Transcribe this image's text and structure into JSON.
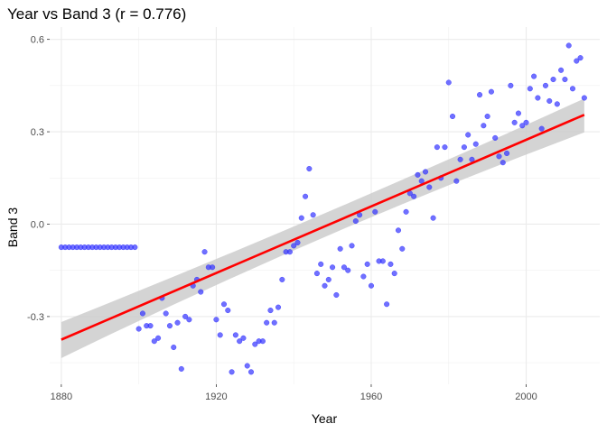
{
  "chart_data": {
    "type": "scatter",
    "title": "Year vs Band 3 (r = 0.776)",
    "xlabel": "Year",
    "ylabel": "Band 3",
    "xlim": [
      1877,
      2019
    ],
    "ylim": [
      -0.52,
      0.64
    ],
    "x_ticks": [
      1880,
      1920,
      1960,
      2000
    ],
    "x_tick_labels": [
      "1880",
      "1920",
      "1960",
      "2000"
    ],
    "y_ticks": [
      -0.3,
      0.0,
      0.3,
      0.6
    ],
    "y_tick_labels": [
      "-0.3",
      "0.0",
      "0.3",
      "0.6"
    ],
    "grid": true,
    "point_color": "#3333ff",
    "line_color": "#ff0000",
    "band_color": "#cccccc",
    "points": [
      [
        1880,
        -0.075
      ],
      [
        1881,
        -0.075
      ],
      [
        1882,
        -0.075
      ],
      [
        1883,
        -0.075
      ],
      [
        1884,
        -0.075
      ],
      [
        1885,
        -0.075
      ],
      [
        1886,
        -0.075
      ],
      [
        1887,
        -0.075
      ],
      [
        1888,
        -0.075
      ],
      [
        1889,
        -0.075
      ],
      [
        1890,
        -0.075
      ],
      [
        1891,
        -0.075
      ],
      [
        1892,
        -0.075
      ],
      [
        1893,
        -0.075
      ],
      [
        1894,
        -0.075
      ],
      [
        1895,
        -0.075
      ],
      [
        1896,
        -0.075
      ],
      [
        1897,
        -0.075
      ],
      [
        1898,
        -0.075
      ],
      [
        1899,
        -0.075
      ],
      [
        1900,
        -0.34
      ],
      [
        1901,
        -0.29
      ],
      [
        1902,
        -0.33
      ],
      [
        1903,
        -0.33
      ],
      [
        1904,
        -0.38
      ],
      [
        1905,
        -0.37
      ],
      [
        1906,
        -0.24
      ],
      [
        1907,
        -0.29
      ],
      [
        1908,
        -0.33
      ],
      [
        1909,
        -0.4
      ],
      [
        1910,
        -0.32
      ],
      [
        1911,
        -0.47
      ],
      [
        1912,
        -0.3
      ],
      [
        1913,
        -0.31
      ],
      [
        1914,
        -0.2
      ],
      [
        1915,
        -0.18
      ],
      [
        1916,
        -0.22
      ],
      [
        1917,
        -0.09
      ],
      [
        1918,
        -0.14
      ],
      [
        1919,
        -0.14
      ],
      [
        1920,
        -0.31
      ],
      [
        1921,
        -0.36
      ],
      [
        1922,
        -0.26
      ],
      [
        1923,
        -0.28
      ],
      [
        1924,
        -0.48
      ],
      [
        1925,
        -0.36
      ],
      [
        1926,
        -0.38
      ],
      [
        1927,
        -0.37
      ],
      [
        1928,
        -0.46
      ],
      [
        1929,
        -0.48
      ],
      [
        1930,
        -0.39
      ],
      [
        1931,
        -0.38
      ],
      [
        1932,
        -0.38
      ],
      [
        1933,
        -0.32
      ],
      [
        1934,
        -0.28
      ],
      [
        1935,
        -0.32
      ],
      [
        1936,
        -0.27
      ],
      [
        1937,
        -0.18
      ],
      [
        1938,
        -0.09
      ],
      [
        1939,
        -0.09
      ],
      [
        1940,
        -0.07
      ],
      [
        1941,
        -0.06
      ],
      [
        1942,
        0.02
      ],
      [
        1943,
        0.09
      ],
      [
        1944,
        0.18
      ],
      [
        1945,
        0.03
      ],
      [
        1946,
        -0.16
      ],
      [
        1947,
        -0.13
      ],
      [
        1948,
        -0.2
      ],
      [
        1949,
        -0.18
      ],
      [
        1950,
        -0.14
      ],
      [
        1951,
        -0.23
      ],
      [
        1952,
        -0.08
      ],
      [
        1953,
        -0.14
      ],
      [
        1954,
        -0.15
      ],
      [
        1955,
        -0.07
      ],
      [
        1956,
        0.01
      ],
      [
        1957,
        0.03
      ],
      [
        1958,
        -0.17
      ],
      [
        1959,
        -0.13
      ],
      [
        1960,
        -0.2
      ],
      [
        1961,
        0.04
      ],
      [
        1962,
        -0.12
      ],
      [
        1963,
        -0.12
      ],
      [
        1964,
        -0.26
      ],
      [
        1965,
        -0.13
      ],
      [
        1966,
        -0.16
      ],
      [
        1967,
        -0.02
      ],
      [
        1968,
        -0.08
      ],
      [
        1969,
        0.04
      ],
      [
        1970,
        0.1
      ],
      [
        1971,
        0.09
      ],
      [
        1972,
        0.16
      ],
      [
        1973,
        0.14
      ],
      [
        1974,
        0.17
      ],
      [
        1975,
        0.12
      ],
      [
        1976,
        0.02
      ],
      [
        1977,
        0.25
      ],
      [
        1978,
        0.15
      ],
      [
        1979,
        0.25
      ],
      [
        1980,
        0.46
      ],
      [
        1981,
        0.35
      ],
      [
        1982,
        0.14
      ],
      [
        1983,
        0.21
      ],
      [
        1984,
        0.25
      ],
      [
        1985,
        0.29
      ],
      [
        1986,
        0.21
      ],
      [
        1987,
        0.26
      ],
      [
        1988,
        0.42
      ],
      [
        1989,
        0.32
      ],
      [
        1990,
        0.35
      ],
      [
        1991,
        0.43
      ],
      [
        1992,
        0.28
      ],
      [
        1993,
        0.22
      ],
      [
        1994,
        0.2
      ],
      [
        1995,
        0.23
      ],
      [
        1996,
        0.45
      ],
      [
        1997,
        0.33
      ],
      [
        1998,
        0.36
      ],
      [
        1999,
        0.32
      ],
      [
        2000,
        0.33
      ],
      [
        2001,
        0.44
      ],
      [
        2002,
        0.48
      ],
      [
        2003,
        0.41
      ],
      [
        2004,
        0.31
      ],
      [
        2005,
        0.45
      ],
      [
        2006,
        0.4
      ],
      [
        2007,
        0.47
      ],
      [
        2008,
        0.39
      ],
      [
        2009,
        0.5
      ],
      [
        2010,
        0.47
      ],
      [
        2011,
        0.58
      ],
      [
        2012,
        0.44
      ],
      [
        2013,
        0.53
      ],
      [
        2014,
        0.54
      ],
      [
        2015,
        0.41
      ]
    ],
    "fit": {
      "x_start": 1880,
      "x_end": 2015,
      "y_start": -0.375,
      "y_end": 0.355,
      "ci_start": [
        -0.435,
        -0.318
      ],
      "ci_mid": [
        -0.02,
        0.02
      ],
      "ci_end": [
        0.298,
        0.408
      ]
    }
  }
}
